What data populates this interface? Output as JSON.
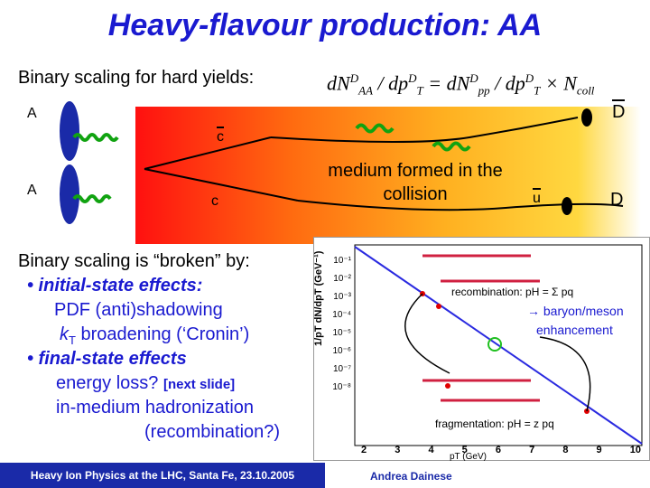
{
  "title": "Heavy-flavour production: AA",
  "subtitle": "Binary scaling for hard yields:",
  "formula": {
    "lhs_num": "dN",
    "lhs_num_sup": "D",
    "lhs_num_sub": "AA",
    "slash1": " / dp",
    "lhs_den_sup": "D",
    "lhs_den_sub": "T",
    "eq": " = dN",
    "rhs_num_sup": "D",
    "rhs_num_sub": "pp",
    "slash2": " / dp",
    "rhs_den_sup": "D",
    "rhs_den_sub": "T",
    "times": " × N",
    "ncoll_sub": "coll"
  },
  "diagram": {
    "nucleus_top_label": "A",
    "nucleus_bottom_label": "A",
    "quark_c_bar": "c",
    "quark_c": "c",
    "quark_u_bar": "u",
    "meson_top": "D",
    "meson_bottom": "D",
    "medium_text": "medium formed in the collision"
  },
  "bullets": {
    "intro": "Binary scaling is “broken” by:",
    "initial": "• initial-state effects:",
    "pdf": "PDF (anti)shadowing",
    "kt_k": "k",
    "kt_sub": "T",
    "kt_rest": " broadening (‘Cronin’)",
    "final": "• final-state effects",
    "eloss": "energy loss? ",
    "next": "[next slide]",
    "inmed": "in-medium hadronization",
    "recomb": "(recombination?)"
  },
  "plot": {
    "ylabel": "1/pT dN/dpT (GeV⁻¹)",
    "xlabel": "pT (GeV)",
    "xticks": [
      "2",
      "3",
      "4",
      "5",
      "6",
      "7",
      "8",
      "9",
      "10"
    ],
    "yticks": [
      "10⁻¹",
      "10⁻²",
      "10⁻³",
      "10⁻⁴",
      "10⁻⁵",
      "10⁻⁶",
      "10⁻⁷",
      "10⁻⁸"
    ],
    "recomb_label": "recombination: pH = Σ pq",
    "baryon_label": "→ baryon/meson",
    "enhance_label": "enhancement",
    "frag_label": "fragmentation: pH = z pq",
    "line_color": "#2a2ae0",
    "point_color": "#e00000",
    "circle_color": "#20c020"
  },
  "footer": {
    "left": "Heavy Ion Physics at the LHC, Santa Fe, 23.10.2005",
    "author": "Andrea Dainese"
  }
}
